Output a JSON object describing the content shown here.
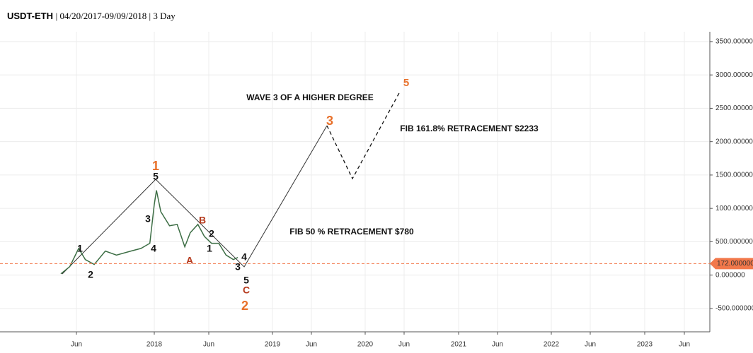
{
  "chart_data": {
    "type": "line",
    "symbol": "USDT-ETH",
    "title": "| 04/20/2017-09/09/2018 | 3 Day",
    "x": [
      3.6,
      4.4,
      5.2,
      5.8,
      6.6,
      7.6,
      8.6,
      9.9,
      10.8,
      11.6,
      12.0,
      12.2,
      12.6,
      13.4,
      14.1,
      14.8,
      15.3,
      16.0,
      16.6,
      17.3,
      18.1,
      18.9,
      19.7,
      20.2
    ],
    "series": [
      {
        "name": "USDT-ETH",
        "color": "#3d6e45",
        "values": [
          20,
          127,
          400,
          233,
          160,
          360,
          300,
          360,
          400,
          477,
          1060,
          1270,
          950,
          740,
          760,
          424,
          635,
          760,
          580,
          477,
          477,
          300,
          233,
          265
        ]
      }
    ],
    "ylim": [
      -850,
      3700
    ],
    "yticks": [
      {
        "value": 3500,
        "label": "3500.000000"
      },
      {
        "value": 3000,
        "label": "3000.000000"
      },
      {
        "value": 2500,
        "label": "2500.000000"
      },
      {
        "value": 2000,
        "label": "2000.000000"
      },
      {
        "value": 1500,
        "label": "1500.000000"
      },
      {
        "value": 1000,
        "label": "1000.000000"
      },
      {
        "value": 500,
        "label": "500.000000"
      },
      {
        "value": 0,
        "label": "0.000000"
      },
      {
        "value": -500,
        "label": "-500.000000"
      }
    ],
    "xticks": [
      {
        "value": 5,
        "label": "Jun"
      },
      {
        "value": 12,
        "label": "2018"
      },
      {
        "value": 17,
        "label": "Jun"
      },
      {
        "value": 24,
        "label": "2019"
      },
      {
        "value": 29,
        "label": "Jun"
      },
      {
        "value": 36,
        "label": "2020"
      },
      {
        "value": 41,
        "label": "Jun"
      },
      {
        "value": 48,
        "label": "2021"
      },
      {
        "value": 53,
        "label": "Jun"
      },
      {
        "value": 60,
        "label": "2022"
      },
      {
        "value": 65,
        "label": "Jun"
      },
      {
        "value": 72,
        "label": "2023"
      },
      {
        "value": 77,
        "label": "Jun"
      }
    ],
    "grid": true,
    "current_price": {
      "value": 172,
      "label": "172.000000",
      "color": "#f2784b"
    },
    "annotations": [
      {
        "text": "1",
        "color": "#e8702a"
      },
      {
        "text": "5",
        "color": "#111"
      },
      {
        "text": "3",
        "color": "#111"
      },
      {
        "text": "4",
        "color": "#111"
      },
      {
        "text": "1",
        "color": "#111"
      },
      {
        "text": "2",
        "color": "#111"
      },
      {
        "text": "B",
        "color": "#b5391c"
      },
      {
        "text": "2",
        "color": "#111"
      },
      {
        "text": "1",
        "color": "#111"
      },
      {
        "text": "A",
        "color": "#b5391c"
      },
      {
        "text": "3",
        "color": "#111"
      },
      {
        "text": "4",
        "color": "#111"
      },
      {
        "text": "5",
        "color": "#111"
      },
      {
        "text": "C",
        "color": "#b5391c"
      },
      {
        "text": "2",
        "color": "#e8702a"
      },
      {
        "text": "3",
        "color": "#e8702a"
      },
      {
        "text": "5",
        "color": "#e8702a"
      },
      {
        "text": "WAVE 3 OF A HIGHER DEGREE",
        "color": "#111"
      },
      {
        "text": "FIB 161.8% RETRACEMENT $2233",
        "color": "#111"
      },
      {
        "text": "FIB 50 % RETRACEMENT  $780",
        "color": "#111"
      }
    ]
  }
}
